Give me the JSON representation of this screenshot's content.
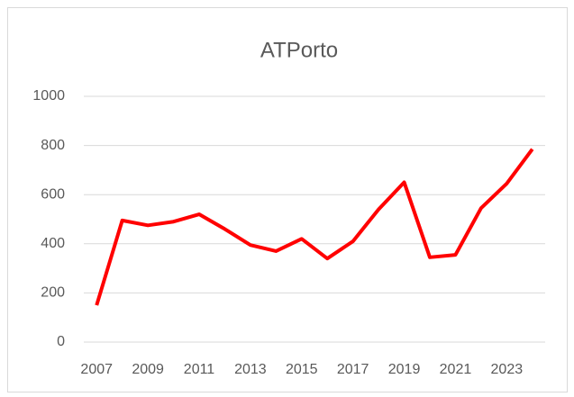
{
  "chart_data": {
    "type": "line",
    "title": "ATPorto",
    "categories": [
      "2007",
      null,
      "2009",
      null,
      "2011",
      null,
      "2013",
      null,
      "2015",
      null,
      "2017",
      null,
      "2019",
      null,
      "2021",
      null,
      "2023",
      null
    ],
    "series": [
      {
        "name": "ATPorto",
        "color": "#ff0000",
        "values": [
          150,
          495,
          475,
          490,
          520,
          460,
          395,
          370,
          420,
          340,
          410,
          540,
          650,
          345,
          355,
          545,
          645,
          785
        ]
      }
    ],
    "ylim": [
      0,
      1000
    ],
    "yticks": [
      0,
      200,
      400,
      600,
      800,
      1000
    ],
    "grid": true,
    "legend": false
  }
}
